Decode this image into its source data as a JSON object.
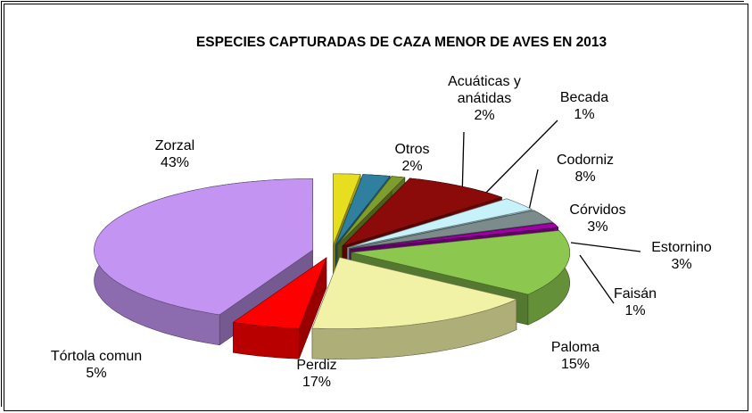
{
  "chart_data": {
    "type": "pie3d",
    "title": "ESPECIES CAPTURADAS DE CAZA MENOR DE AVES EN 2013",
    "categories": [
      "Otros",
      "Acuáticas y anátidas",
      "Becada",
      "Codorniz",
      "Córvidos",
      "Estornino",
      "Faisán",
      "Paloma",
      "Perdiz",
      "Tórtola comun",
      "Zorzal"
    ],
    "values": [
      2,
      2,
      1,
      8,
      3,
      3,
      1,
      15,
      17,
      5,
      43
    ],
    "value_labels": [
      "2%",
      "2%",
      "1%",
      "8%",
      "3%",
      "3%",
      "1%",
      "15%",
      "17%",
      "5%",
      "43%"
    ],
    "colors": [
      "#e6de1e",
      "#2f7f9e",
      "#7f9d2c",
      "#8b0a0a",
      "#c8f2fa",
      "#7c8c8c",
      "#a000a8",
      "#8cc850",
      "#f2f2a6",
      "#ff0000",
      "#c394f2"
    ]
  }
}
